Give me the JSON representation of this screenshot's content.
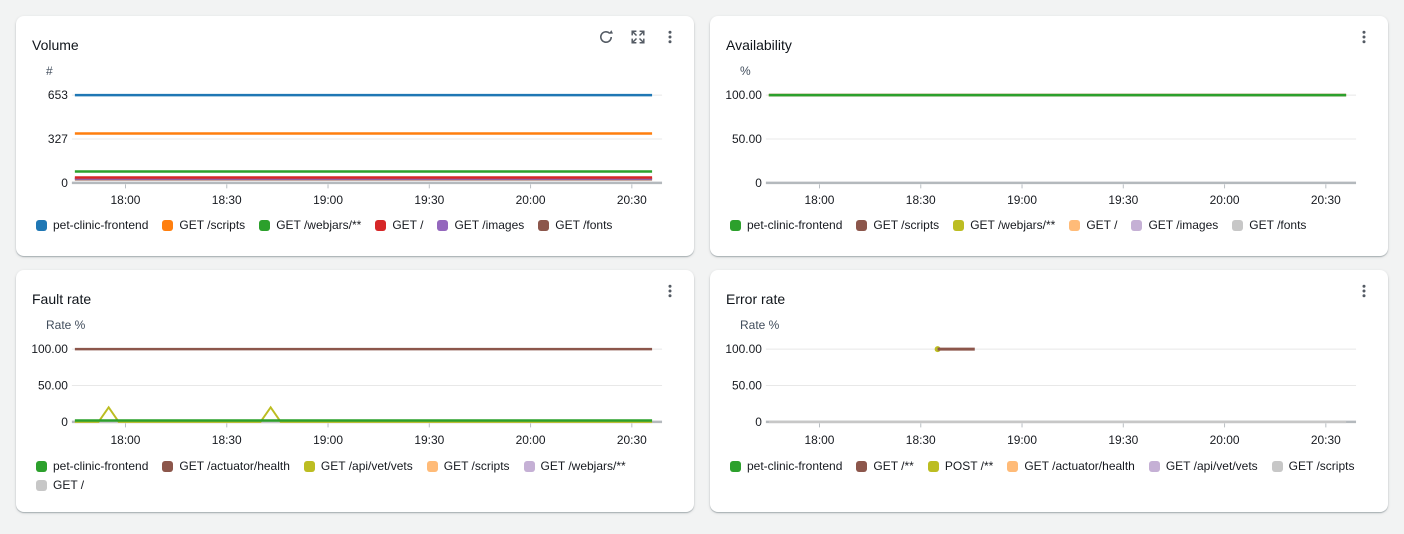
{
  "page": {
    "background_color": "#f2f3f3",
    "panel_color": "#ffffff"
  },
  "icon_glyphs": {
    "refresh": "circular-arrow",
    "expand": "arrows-out-to-corners",
    "menu": "vertical-ellipsis"
  },
  "chart_data": [
    {
      "type": "line",
      "title": "Volume",
      "ylabel": "#",
      "y_ticks": [
        "653",
        "327",
        "0"
      ],
      "ylim": [
        0,
        700
      ],
      "x_ticks": [
        "18:00",
        "18:30",
        "19:00",
        "19:30",
        "20:00",
        "20:30"
      ],
      "x_tick_minutes": [
        15,
        45,
        75,
        105,
        135,
        165
      ],
      "x_span_minutes": 171,
      "x_range": [
        "17:45",
        "20:36"
      ],
      "grid": true,
      "legend_position": "bottom",
      "actions": [
        "refresh",
        "expand",
        "menu"
      ],
      "series": [
        {
          "name": "pet-clinic-frontend",
          "color": "#1f77b4",
          "shape": "const",
          "value": 653
        },
        {
          "name": "GET /scripts",
          "color": "#ff7f0e",
          "shape": "const",
          "value": 368
        },
        {
          "name": "GET /webjars/**",
          "color": "#2ca02c",
          "shape": "const",
          "value": 85
        },
        {
          "name": "GET /",
          "color": "#d62728",
          "shape": "const",
          "value": 40
        },
        {
          "name": "GET /images",
          "color": "#9467bd",
          "shape": "const",
          "value": 33
        },
        {
          "name": "GET /fonts",
          "color": "#8c564b",
          "shape": "const",
          "value": 27
        }
      ]
    },
    {
      "type": "line",
      "title": "Availability",
      "ylabel": "%",
      "y_ticks": [
        "100.00",
        "50.00",
        "0"
      ],
      "ylim": [
        0,
        107
      ],
      "x_ticks": [
        "18:00",
        "18:30",
        "19:00",
        "19:30",
        "20:00",
        "20:30"
      ],
      "x_tick_minutes": [
        15,
        45,
        75,
        105,
        135,
        165
      ],
      "x_span_minutes": 171,
      "x_range": [
        "17:45",
        "20:36"
      ],
      "grid": true,
      "legend_position": "bottom",
      "actions": [
        "menu"
      ],
      "series": [
        {
          "name": "pet-clinic-frontend",
          "color": "#2ca02c",
          "shape": "const",
          "value": 100
        },
        {
          "name": "GET /scripts",
          "color": "#8c564b",
          "shape": "const",
          "value": 100
        },
        {
          "name": "GET /webjars/**",
          "color": "#bcbd22",
          "shape": "const",
          "value": 100
        },
        {
          "name": "GET /",
          "color": "#ffbb78",
          "shape": "const",
          "value": 100
        },
        {
          "name": "GET /images",
          "color": "#c5b0d5",
          "shape": "const",
          "value": 100
        },
        {
          "name": "GET /fonts",
          "color": "#c7c7c7",
          "shape": "const",
          "value": 100
        }
      ]
    },
    {
      "type": "line",
      "title": "Fault rate",
      "ylabel": "Rate %",
      "y_ticks": [
        "100.00",
        "50.00",
        "0"
      ],
      "ylim": [
        0,
        107
      ],
      "x_ticks": [
        "18:00",
        "18:30",
        "19:00",
        "19:30",
        "20:00",
        "20:30"
      ],
      "x_tick_minutes": [
        15,
        45,
        75,
        105,
        135,
        165
      ],
      "x_span_minutes": 171,
      "x_range": [
        "17:45",
        "20:36"
      ],
      "grid": true,
      "legend_position": "bottom",
      "actions": [
        "menu"
      ],
      "series": [
        {
          "name": "pet-clinic-frontend",
          "color": "#2ca02c",
          "shape": "const",
          "value": 2
        },
        {
          "name": "GET /actuator/health",
          "color": "#8c564b",
          "shape": "const",
          "value": 100
        },
        {
          "name": "GET /api/vet/vets",
          "color": "#bcbd22",
          "shape": "points",
          "points": [
            [
              0,
              0
            ],
            [
              7,
              0
            ],
            [
              10,
              20
            ],
            [
              13,
              0
            ],
            [
              55,
              0
            ],
            [
              58,
              20
            ],
            [
              61,
              0
            ],
            [
              171,
              0
            ]
          ]
        },
        {
          "name": "GET /scripts",
          "color": "#ffbb78",
          "shape": "none"
        },
        {
          "name": "GET /webjars/**",
          "color": "#c5b0d5",
          "shape": "none"
        },
        {
          "name": "GET /",
          "color": "#c7c7c7",
          "shape": "const",
          "value": 0
        }
      ]
    },
    {
      "type": "line",
      "title": "Error rate",
      "ylabel": "Rate %",
      "y_ticks": [
        "100.00",
        "50.00",
        "0"
      ],
      "ylim": [
        0,
        107
      ],
      "x_ticks": [
        "18:00",
        "18:30",
        "19:00",
        "19:30",
        "20:00",
        "20:30"
      ],
      "x_tick_minutes": [
        15,
        45,
        75,
        105,
        135,
        165
      ],
      "x_span_minutes": 171,
      "x_range": [
        "17:45",
        "20:36"
      ],
      "grid": true,
      "legend_position": "bottom",
      "actions": [
        "menu"
      ],
      "series": [
        {
          "name": "pet-clinic-frontend",
          "color": "#2ca02c",
          "shape": "none"
        },
        {
          "name": "GET /**",
          "color": "#8c564b",
          "shape": "segment",
          "from": 50,
          "to": 61,
          "value": 100
        },
        {
          "name": "POST /**",
          "color": "#bcbd22",
          "shape": "point",
          "t": 50,
          "value": 100
        },
        {
          "name": "GET /actuator/health",
          "color": "#ffbb78",
          "shape": "none"
        },
        {
          "name": "GET /api/vet/vets",
          "color": "#c5b0d5",
          "shape": "none"
        },
        {
          "name": "GET /scripts",
          "color": "#c7c7c7",
          "shape": "const",
          "value": 0
        }
      ]
    }
  ]
}
